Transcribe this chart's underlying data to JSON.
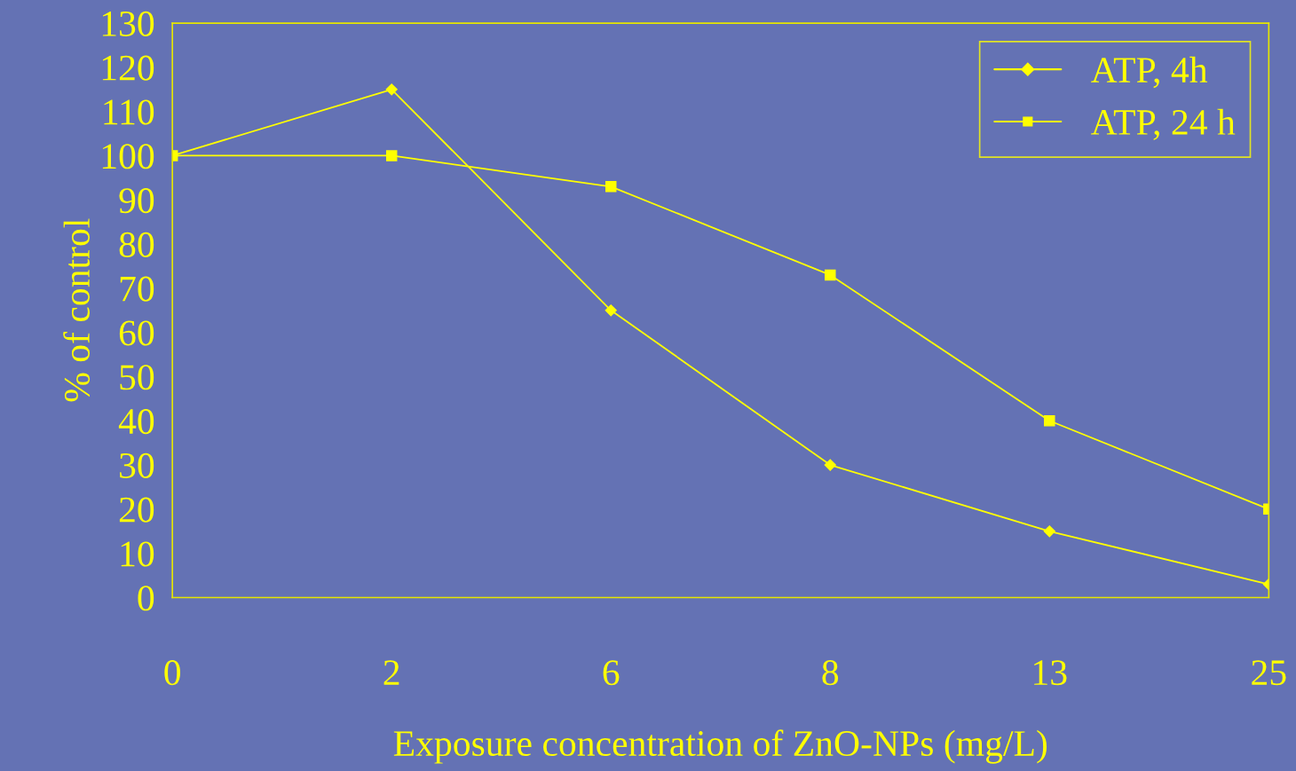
{
  "chart_data": {
    "type": "line",
    "xlabel": "Exposure concentration of ZnO-NPs (mg/L)",
    "ylabel": "% of control",
    "categories": [
      "0",
      "2",
      "6",
      "8",
      "13",
      "25"
    ],
    "series": [
      {
        "name": "ATP, 4h",
        "color": "#ffff00",
        "marker": "diamond",
        "values": [
          100,
          115,
          65,
          30,
          15,
          3
        ]
      },
      {
        "name": "ATP, 24 h",
        "color": "#ffff00",
        "marker": "square",
        "values": [
          100,
          100,
          93,
          73,
          40,
          20
        ]
      }
    ],
    "ylim": [
      0,
      130
    ],
    "yticks": [
      0,
      10,
      20,
      30,
      40,
      50,
      60,
      70,
      80,
      90,
      100,
      110,
      120,
      130
    ],
    "grid": false,
    "legend": "top right",
    "line_style": "solid"
  }
}
